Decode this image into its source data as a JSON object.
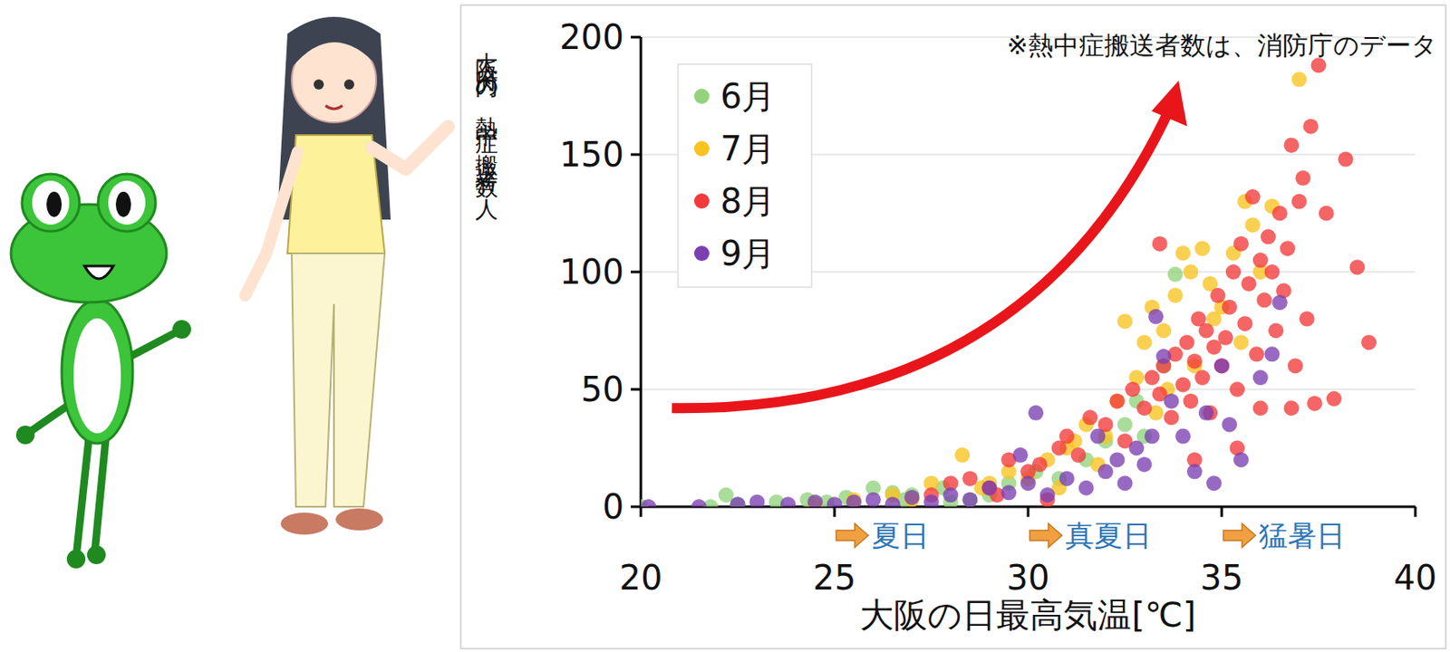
{
  "chart_data": {
    "type": "scatter",
    "note": "※熱中症搬送者数は、消防庁のデータ",
    "y_label": "大阪府内の熱中症 搬送者数 人",
    "x_label": "大阪の日最高気温[℃]",
    "xlim": [
      20,
      40
    ],
    "ylim": [
      0,
      200
    ],
    "xticks": [
      20,
      25,
      30,
      35,
      40
    ],
    "yticks": [
      0,
      50,
      100,
      150,
      200
    ],
    "grid": true,
    "legend": "upper left",
    "marker": "circle",
    "annotations": [
      {
        "text": "夏日",
        "x": 25
      },
      {
        "text": "真夏日",
        "x": 30
      },
      {
        "text": "猛暑日",
        "x": 35
      }
    ],
    "series": [
      {
        "name": "6月",
        "color": "#92d37c",
        "x": [
          20.0,
          21.8,
          22.2,
          22.5,
          23.5,
          24.3,
          24.8,
          25.3,
          26.0,
          26.5,
          27.0,
          27.8,
          28.5,
          29.5,
          30.2,
          30.8,
          31.5,
          32.0,
          32.5,
          33.0,
          33.5,
          33.8,
          32.8,
          29.0,
          28.0,
          26.8
        ],
        "values": [
          0,
          0,
          5,
          1,
          2,
          3,
          2,
          4,
          8,
          6,
          5,
          8,
          3,
          10,
          15,
          12,
          20,
          28,
          35,
          30,
          60,
          99,
          45,
          5,
          2,
          3
        ]
      },
      {
        "name": "7月",
        "color": "#f9c31f",
        "x": [
          24.5,
          25.5,
          26.5,
          27.5,
          28.3,
          28.8,
          29.5,
          30.0,
          30.5,
          31.0,
          31.5,
          31.8,
          32.3,
          32.5,
          32.8,
          33.0,
          33.2,
          33.5,
          33.8,
          34.0,
          34.2,
          34.5,
          34.7,
          35.0,
          35.3,
          35.6,
          35.8,
          36.0,
          36.3,
          37.0,
          33.3,
          32.0,
          34.3,
          35.5,
          30.8,
          29.0,
          27.0,
          33.6,
          34.8,
          31.2
        ],
        "values": [
          1,
          3,
          5,
          10,
          22,
          8,
          15,
          12,
          20,
          25,
          35,
          18,
          45,
          79,
          55,
          70,
          85,
          75,
          90,
          108,
          100,
          110,
          95,
          85,
          108,
          130,
          120,
          100,
          128,
          182,
          40,
          30,
          60,
          70,
          8,
          10,
          3,
          50,
          80,
          28
        ]
      },
      {
        "name": "8月",
        "color": "#f23a3a",
        "x": [
          27.5,
          28.0,
          28.5,
          29.0,
          29.5,
          30.0,
          30.3,
          30.8,
          31.0,
          31.3,
          31.6,
          32.0,
          32.3,
          32.5,
          32.7,
          33.0,
          33.2,
          33.4,
          33.5,
          33.7,
          33.8,
          34.0,
          34.1,
          34.2,
          34.3,
          34.4,
          34.5,
          34.6,
          34.7,
          34.8,
          34.9,
          35.0,
          35.1,
          35.2,
          35.3,
          35.4,
          35.5,
          35.6,
          35.7,
          35.8,
          35.9,
          36.0,
          36.1,
          36.2,
          36.3,
          36.4,
          36.5,
          36.6,
          36.7,
          36.8,
          36.9,
          37.0,
          37.1,
          37.2,
          37.3,
          37.4,
          37.5,
          37.7,
          37.9,
          38.2,
          38.5,
          38.8,
          33.4,
          34.3,
          35.4,
          36.0,
          36.8,
          30.5,
          29.2
        ],
        "values": [
          5,
          10,
          12,
          8,
          20,
          15,
          18,
          25,
          30,
          22,
          38,
          35,
          45,
          28,
          50,
          42,
          55,
          48,
          60,
          38,
          65,
          52,
          70,
          45,
          62,
          80,
          55,
          75,
          40,
          68,
          90,
          60,
          72,
          85,
          100,
          50,
          112,
          78,
          95,
          132,
          65,
          105,
          88,
          115,
          100,
          75,
          125,
          92,
          110,
          154,
          60,
          130,
          140,
          80,
          162,
          44,
          188,
          125,
          46,
          148,
          102,
          70,
          112,
          20,
          25,
          42,
          42,
          3,
          5
        ]
      },
      {
        "name": "9月",
        "color": "#7b3fb1",
        "x": [
          20.2,
          21.5,
          22.5,
          23.0,
          23.8,
          24.5,
          25.0,
          25.5,
          26.0,
          26.5,
          27.0,
          27.5,
          28.0,
          28.5,
          29.0,
          29.5,
          30.0,
          30.5,
          31.0,
          31.5,
          32.0,
          32.3,
          32.5,
          32.8,
          33.0,
          33.2,
          33.5,
          33.7,
          34.0,
          34.3,
          34.6,
          35.0,
          35.5,
          36.0,
          36.3,
          36.5,
          33.3,
          30.2,
          29.8,
          31.8,
          34.8,
          35.2
        ],
        "values": [
          0,
          0,
          1,
          2,
          1,
          2,
          1,
          2,
          3,
          1,
          4,
          2,
          5,
          3,
          8,
          6,
          10,
          5,
          12,
          8,
          15,
          20,
          10,
          25,
          18,
          30,
          64,
          45,
          30,
          15,
          40,
          60,
          20,
          55,
          65,
          87,
          81,
          40,
          22,
          30,
          10,
          35
        ]
      }
    ]
  }
}
